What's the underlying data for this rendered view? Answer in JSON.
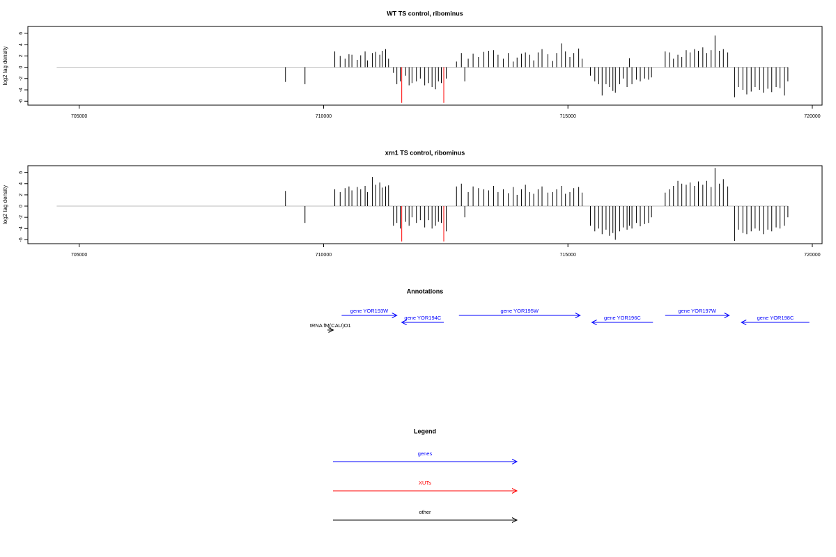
{
  "chart_data": [
    {
      "type": "bar",
      "title": "WT TS control, ribominus",
      "ylabel": "log2 tag density",
      "xlim": [
        703950,
        720200
      ],
      "xticks": [
        705000,
        710000,
        715000,
        720000
      ],
      "ylim": [
        -6.7,
        7.2
      ],
      "yticks": [
        -6,
        -4,
        -2,
        0,
        2,
        4,
        6
      ],
      "zero_line": [
        704540,
        719500
      ],
      "zero_color": "#bbbbbb",
      "series": [
        {
          "color": "#000000",
          "x": [
            709220,
            709620,
            710230,
            710340,
            710440,
            710520,
            710580,
            710690,
            710760,
            710850,
            710900,
            711000,
            711070,
            711150,
            711200,
            711270,
            711330,
            711430,
            711500,
            711570,
            711680,
            711750,
            711810,
            711900,
            711980,
            712070,
            712150,
            712220,
            712290,
            712350,
            712410,
            712510,
            712720,
            712820,
            712890,
            712960,
            713060,
            713170,
            713280,
            713380,
            713480,
            713570,
            713680,
            713780,
            713880,
            713960,
            714050,
            714130,
            714220,
            714300,
            714390,
            714470,
            714590,
            714690,
            714770,
            714870,
            714950,
            715040,
            715120,
            715220,
            715290,
            715460,
            715550,
            715630,
            715700,
            715780,
            715850,
            715920,
            715970,
            716060,
            716130,
            716210,
            716260,
            716310,
            716400,
            716480,
            716570,
            716650,
            716710,
            716990,
            717080,
            717160,
            717250,
            717330,
            717420,
            717500,
            717590,
            717670,
            717760,
            717840,
            717930,
            718010,
            718100,
            718180,
            718270,
            718410,
            718490,
            718580,
            718660,
            718750,
            718830,
            718920,
            719000,
            719090,
            719170,
            719260,
            719340,
            719430,
            719500
          ],
          "values": [
            -2.6,
            -3,
            2.8,
            2,
            1.5,
            2.3,
            2.2,
            1.3,
            2.1,
            2.8,
            1.2,
            2.5,
            2.7,
            2.2,
            2.9,
            3.2,
            1.5,
            -1,
            -3,
            -2.5,
            -1.5,
            -3.2,
            -2.8,
            -2.5,
            -2,
            -3.2,
            -2.8,
            -3.5,
            -3.9,
            -2.5,
            -2.8,
            -2,
            1,
            2.5,
            -2.5,
            1.5,
            2.4,
            1.8,
            2.7,
            2.9,
            3,
            2.2,
            1.5,
            2.5,
            1,
            1.7,
            2.4,
            2.6,
            2.2,
            1.2,
            2.6,
            3.2,
            2.3,
            1.1,
            2.5,
            4.2,
            2.8,
            1.8,
            2.5,
            3.3,
            1.5,
            -1.5,
            -2.5,
            -3,
            -5,
            -3,
            -3.5,
            -4.2,
            -4.5,
            -3,
            -2,
            -3.5,
            1.6,
            -3,
            -2.2,
            -2.5,
            -2,
            -2.2,
            -1.8,
            2.8,
            2.6,
            1.5,
            2.2,
            1.8,
            3,
            2.6,
            3.2,
            2.9,
            3.5,
            2.5,
            3,
            5.6,
            2.9,
            3.2,
            2.6,
            -5.3,
            -3.5,
            -4,
            -4.8,
            -4.3,
            -3.5,
            -4,
            -4.5,
            -3.8,
            -4.4,
            -3.5,
            -3.7,
            -5,
            -2.5
          ]
        },
        {
          "color": "#ff0000",
          "x": [
            711600,
            712460
          ],
          "values": [
            -6.3,
            -6.3
          ]
        }
      ]
    },
    {
      "type": "bar",
      "title": "xrn1 TS control, ribominus",
      "ylabel": "log2 tag density",
      "xlim": [
        703950,
        720200
      ],
      "xticks": [
        705000,
        710000,
        715000,
        720000
      ],
      "ylim": [
        -6.7,
        7.2
      ],
      "yticks": [
        -6,
        -4,
        -2,
        0,
        2,
        4,
        6
      ],
      "zero_line": [
        704540,
        719500
      ],
      "zero_color": "#bbbbbb",
      "series": [
        {
          "color": "#000000",
          "x": [
            709220,
            709620,
            710230,
            710340,
            710440,
            710520,
            710580,
            710690,
            710760,
            710850,
            710900,
            711000,
            711070,
            711150,
            711200,
            711270,
            711330,
            711430,
            711500,
            711570,
            711680,
            711750,
            711810,
            711900,
            711980,
            712070,
            712150,
            712220,
            712290,
            712350,
            712410,
            712510,
            712720,
            712820,
            712890,
            712960,
            713060,
            713170,
            713280,
            713380,
            713480,
            713570,
            713680,
            713780,
            713880,
            713960,
            714050,
            714130,
            714220,
            714300,
            714390,
            714470,
            714590,
            714690,
            714770,
            714870,
            714950,
            715040,
            715120,
            715220,
            715290,
            715460,
            715550,
            715630,
            715700,
            715780,
            715850,
            715920,
            715970,
            716060,
            716130,
            716210,
            716260,
            716310,
            716400,
            716480,
            716570,
            716650,
            716710,
            716990,
            717080,
            717160,
            717250,
            717330,
            717420,
            717500,
            717590,
            717670,
            717760,
            717840,
            717930,
            718010,
            718100,
            718180,
            718270,
            718410,
            718490,
            718580,
            718660,
            718750,
            718830,
            718920,
            719000,
            719090,
            719170,
            719260,
            719340,
            719430,
            719500
          ],
          "values": [
            2.7,
            -3,
            3,
            2.5,
            3.2,
            3.5,
            2.8,
            3.4,
            3,
            3.6,
            2.5,
            5.2,
            3.8,
            4.2,
            3.3,
            3.5,
            3.7,
            -3.5,
            -3,
            -4,
            -2.8,
            -3.5,
            -2,
            -3,
            -2.5,
            -3.8,
            -2.5,
            -4,
            -3.5,
            -2.8,
            -3,
            -4.5,
            3.5,
            4,
            -2,
            2.5,
            3.5,
            3.2,
            3,
            2.8,
            3.6,
            2.5,
            3,
            2.3,
            3.4,
            2,
            3,
            3.8,
            2.5,
            2.2,
            3,
            3.5,
            2.4,
            2.5,
            3,
            3.6,
            2.2,
            2.5,
            3.2,
            3.4,
            2.4,
            -3.5,
            -4.5,
            -4,
            -5,
            -4.2,
            -5.3,
            -4.8,
            -6,
            -4.5,
            -3.8,
            -4.2,
            -3.5,
            -4,
            -3,
            -3.6,
            -3.2,
            -3,
            -2,
            2.4,
            3,
            3.6,
            4.5,
            4,
            3.8,
            4.2,
            3.6,
            4.4,
            3.8,
            4.5,
            3.4,
            6.8,
            4,
            4.8,
            3.5,
            -6.2,
            -4.2,
            -4.8,
            -5,
            -4.5,
            -4,
            -4.4,
            -5,
            -4.2,
            -4.5,
            -3.8,
            -4,
            -3.5,
            -2
          ]
        },
        {
          "color": "#ff0000",
          "x": [
            711600,
            712460
          ],
          "values": [
            -6.3,
            -6.3
          ]
        }
      ]
    },
    {
      "type": "annotation",
      "title": "Annotations",
      "xlim": [
        703950,
        720200
      ],
      "items": [
        {
          "label": "gene YOR193W",
          "start": 710370,
          "end": 711500,
          "color": "#0000ff"
        },
        {
          "label": "gene YOR194C",
          "start": 712460,
          "end": 711600,
          "color": "#0000ff"
        },
        {
          "label": "gene YOR195W",
          "start": 712770,
          "end": 715250,
          "color": "#0000ff"
        },
        {
          "label": "gene YOR196C",
          "start": 716740,
          "end": 715490,
          "color": "#0000ff"
        },
        {
          "label": "gene YOR197W",
          "start": 716990,
          "end": 718300,
          "color": "#0000ff"
        },
        {
          "label": "gene YOR198C",
          "start": 719940,
          "end": 718550,
          "color": "#0000ff"
        },
        {
          "label": "tRNA fM(CAU)O1",
          "start": 710080,
          "end": 710200,
          "color": "#000000"
        }
      ]
    }
  ],
  "legend": {
    "title": "Legend",
    "items": [
      {
        "label": "genes",
        "color": "#0000ff"
      },
      {
        "label": "XUTs",
        "color": "#ff0000"
      },
      {
        "label": "other",
        "color": "#000000"
      }
    ]
  }
}
